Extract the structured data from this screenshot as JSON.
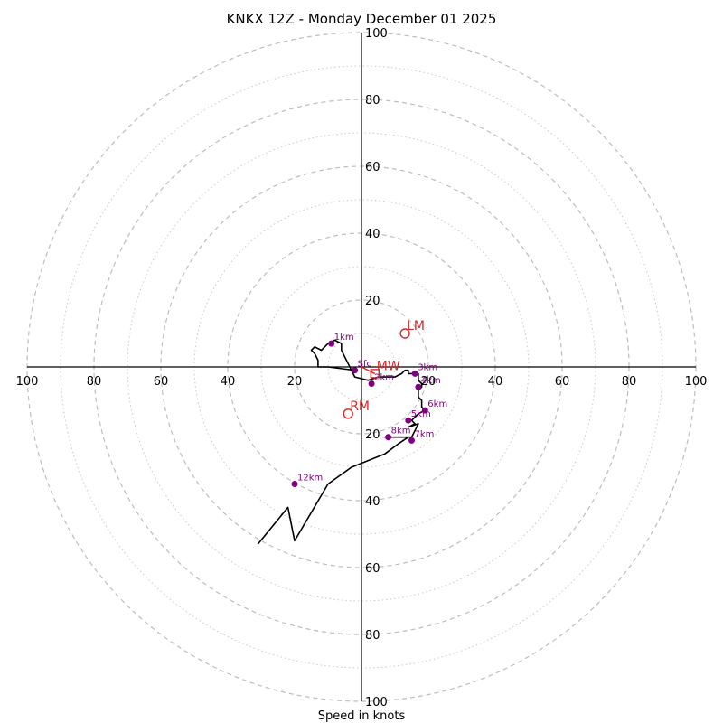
{
  "chart_data": {
    "type": "hodograph",
    "title": "KNKX 12Z - Monday December 01 2025",
    "xlabel": "Speed in knots",
    "ylabel": "",
    "xlim": [
      -100,
      100
    ],
    "ylim": [
      -100,
      100
    ],
    "ring_labels": [
      "20",
      "40",
      "60",
      "80",
      "100"
    ],
    "ring_values": [
      20,
      40,
      60,
      80,
      100
    ],
    "minor_ring_values": [
      10,
      30,
      50,
      70,
      90
    ],
    "trace": {
      "color": "#000000",
      "points": [
        [
          -2,
          -1
        ],
        [
          -10,
          0
        ],
        [
          -13,
          0
        ],
        [
          -13,
          2
        ],
        [
          -14,
          4
        ],
        [
          -15,
          5
        ],
        [
          -14,
          6
        ],
        [
          -12,
          5
        ],
        [
          -11,
          6
        ],
        [
          -10,
          7
        ],
        [
          -8,
          8
        ],
        [
          -6,
          7
        ],
        [
          -6,
          5
        ],
        [
          -4,
          1
        ],
        [
          -2,
          -3
        ],
        [
          2,
          -4
        ],
        [
          5,
          -3
        ],
        [
          8,
          -3
        ],
        [
          10,
          -3
        ],
        [
          12,
          -2
        ],
        [
          13,
          -1
        ],
        [
          14,
          -1
        ],
        [
          14,
          -2
        ],
        [
          17,
          -2
        ],
        [
          17,
          -4
        ],
        [
          18,
          -5
        ],
        [
          18,
          -6
        ],
        [
          17,
          -7
        ],
        [
          17,
          -9
        ],
        [
          18,
          -10
        ],
        [
          18,
          -12
        ],
        [
          19,
          -13
        ],
        [
          17,
          -14
        ],
        [
          16,
          -15
        ],
        [
          15,
          -16
        ],
        [
          16,
          -17
        ],
        [
          14,
          -18
        ],
        [
          17,
          -17
        ],
        [
          16,
          -19
        ],
        [
          15,
          -21
        ],
        [
          12,
          -21
        ],
        [
          9,
          -21
        ],
        [
          7,
          -21
        ],
        [
          8,
          -21
        ],
        [
          14,
          -21
        ],
        [
          11,
          -23
        ],
        [
          7,
          -26
        ],
        [
          -3,
          -30
        ],
        [
          -10,
          -35
        ],
        [
          -20,
          -52
        ],
        [
          -22,
          -42
        ],
        [
          -31,
          -53
        ]
      ]
    },
    "height_markers": [
      {
        "label": "Sfc",
        "x": -2,
        "y": -1
      },
      {
        "label": "1km",
        "x": -9,
        "y": 7
      },
      {
        "label": "2km",
        "x": 3,
        "y": -5
      },
      {
        "label": "3km",
        "x": 16,
        "y": -2
      },
      {
        "label": "4km",
        "x": 17,
        "y": -6
      },
      {
        "label": "5km",
        "x": 14,
        "y": -16
      },
      {
        "label": "6km",
        "x": 19,
        "y": -13
      },
      {
        "label": "7km",
        "x": 15,
        "y": -22
      },
      {
        "label": "8km",
        "x": 8,
        "y": -21
      },
      {
        "label": "12km",
        "x": -20,
        "y": -35
      }
    ],
    "marker_color": "#800080",
    "storm_motions": [
      {
        "label": "LM",
        "x": 13,
        "y": 10
      },
      {
        "label": "MW",
        "x": 4,
        "y": -2
      },
      {
        "label": "RM",
        "x": -4,
        "y": -14
      }
    ],
    "storm_color": "#d62728",
    "mean_wind_vector": {
      "from": [
        0,
        0
      ],
      "to": [
        4,
        -2
      ]
    }
  }
}
